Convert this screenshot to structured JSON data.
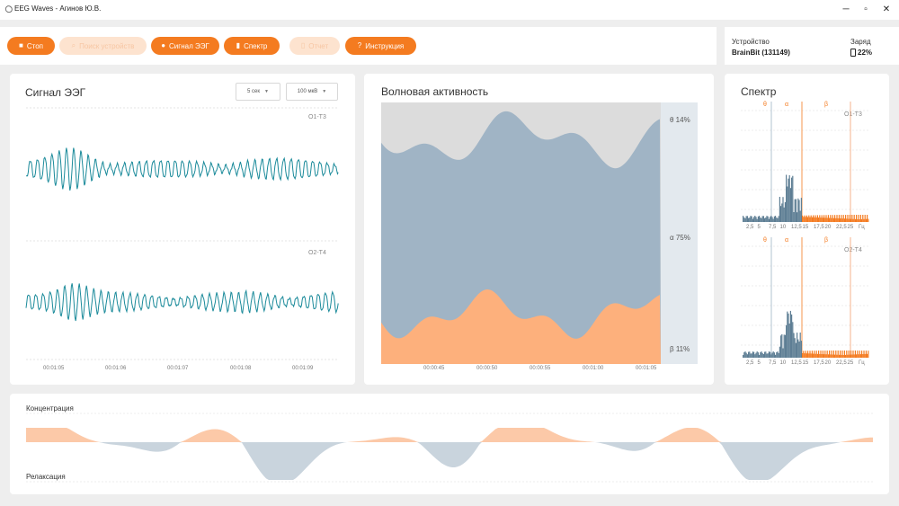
{
  "window": {
    "title": "EEG Waves - Агинов Ю.В.",
    "controls": {
      "minimize": "─",
      "maximize": "▫",
      "close": "✕"
    }
  },
  "toolbar": {
    "stop": {
      "label": "Стоп",
      "icon": "stop-square-icon"
    },
    "search_device": {
      "label": "Поиск устройств",
      "icon": "search-icon"
    },
    "eeg_signal": {
      "label": "Сигнал ЭЭГ",
      "icon": "speech-bubbles-icon"
    },
    "spectrum": {
      "label": "Спектр",
      "icon": "bar-chart-icon"
    },
    "report": {
      "label": "Отчет",
      "icon": "document-icon"
    },
    "instructions": {
      "label": "Инструкция",
      "icon": "question-circle-icon"
    }
  },
  "device": {
    "device_label": "Устройство",
    "device_name": "BrainBit (131149)",
    "charge_label": "Заряд",
    "charge_value": "22%"
  },
  "eeg_panel": {
    "title": "Сигнал ЭЭГ",
    "time_window": "5 сек",
    "amplitude": "100 мкВ",
    "channels": [
      "O1-T3",
      "O2-T4"
    ],
    "time_ticks": [
      "00:01:05",
      "00:01:06",
      "00:01:07",
      "00:01:08",
      "00:01:09"
    ]
  },
  "wave_panel": {
    "title": "Волновая активность",
    "labels": {
      "theta": "θ 14%",
      "alpha": "α 75%",
      "beta": "β 11%"
    },
    "time_ticks": [
      "00:00:45",
      "00:00:50",
      "00:00:55",
      "00:01:00",
      "00:01:05"
    ]
  },
  "spectrum_panel": {
    "title": "Спектр",
    "band_letters": [
      "θ",
      "α",
      "β"
    ],
    "channels": [
      "O1-T3",
      "O2-T4"
    ],
    "x_ticks": [
      "2,5",
      "5",
      "7,5",
      "10",
      "12,5",
      "15",
      "17,5",
      "20",
      "22,5",
      "25",
      "Гц"
    ]
  },
  "state_panel": {
    "concentration_label": "Концентрация",
    "relaxation_label": "Релаксация"
  },
  "colors": {
    "accent": "#f47b20",
    "accent_disabled": "#fde3cf",
    "eeg_line": "#1a8a9a",
    "alpha": "#9fb4c4",
    "theta": "#dcdcdc",
    "beta": "#fdb07c",
    "relax": "#c9d4dd",
    "concentration": "#fcc9a8"
  }
}
